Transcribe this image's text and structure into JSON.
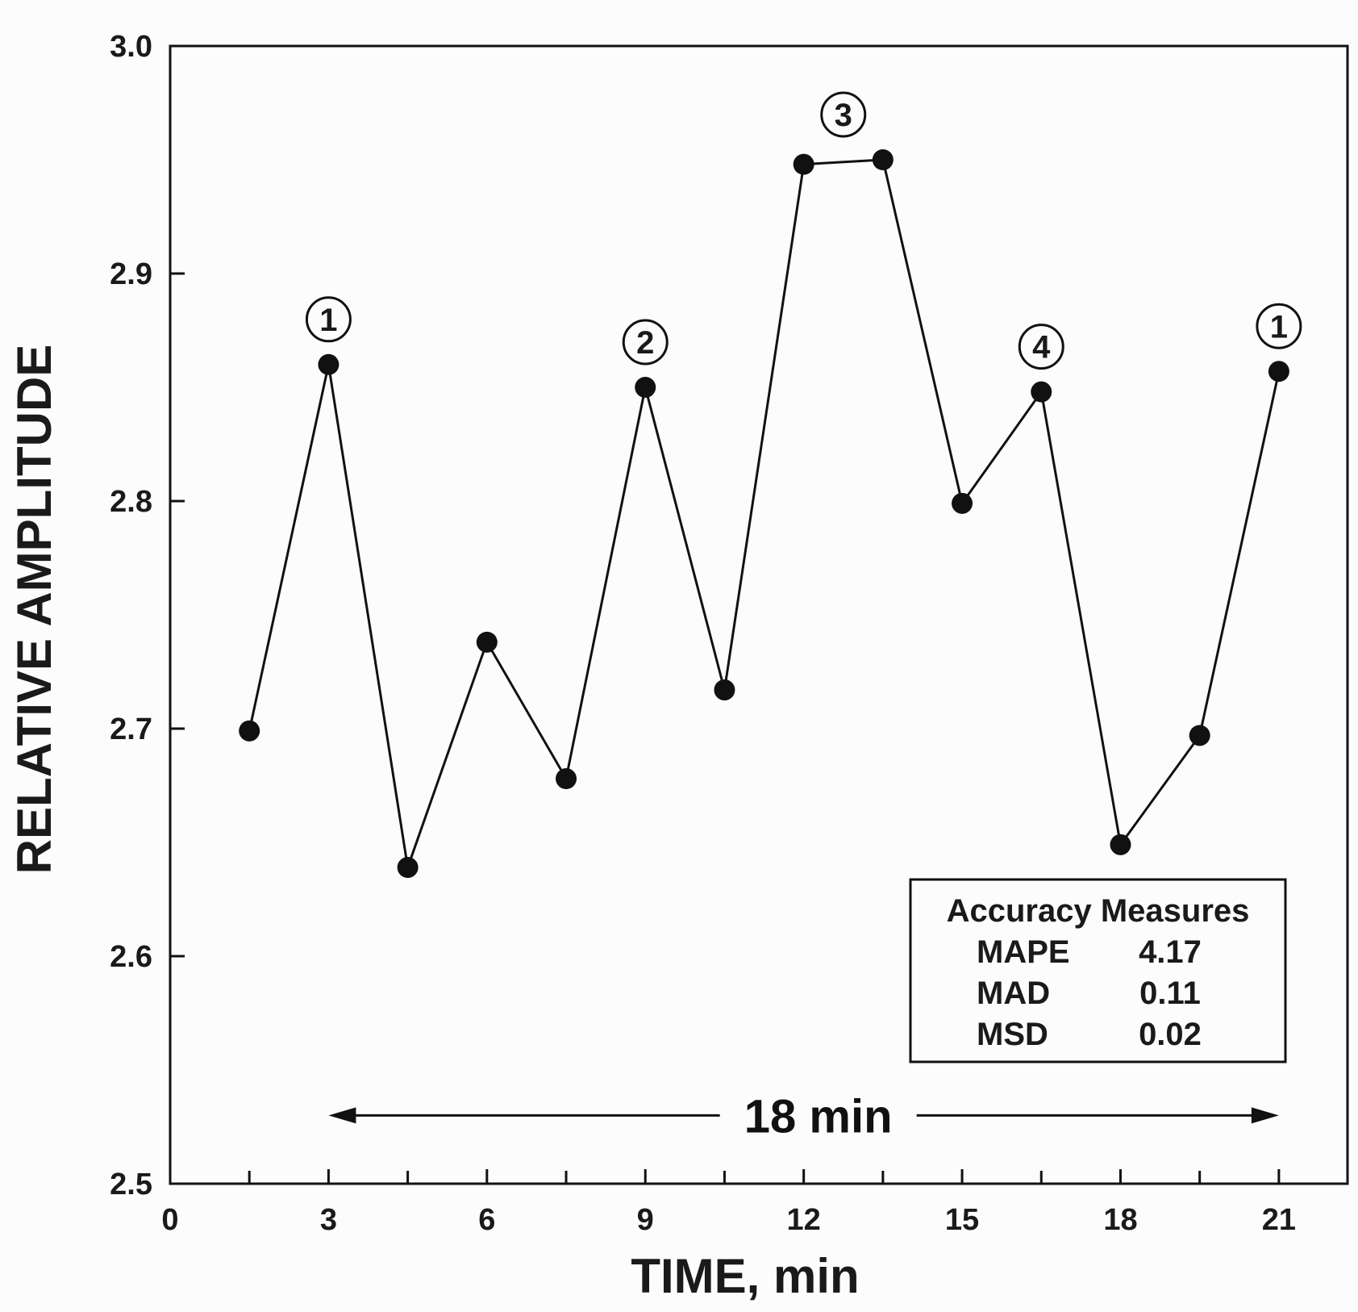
{
  "chart_data": {
    "type": "line",
    "title": "",
    "xlabel": "TIME, min",
    "ylabel": "RELATIVE AMPLITUDE",
    "xlim": [
      0,
      22.3
    ],
    "ylim": [
      2.5,
      3.0
    ],
    "x_ticks": [
      0,
      3,
      6,
      9,
      12,
      15,
      18,
      21
    ],
    "x_minor_ticks": [
      1.5,
      4.5,
      7.5,
      10.5,
      13.5,
      16.5,
      19.5
    ],
    "y_ticks": [
      2.5,
      2.6,
      2.7,
      2.8,
      2.9,
      3.0
    ],
    "x_tick_labels": [
      "0",
      "3",
      "6",
      "9",
      "12",
      "15",
      "18",
      "21"
    ],
    "y_tick_labels": [
      "2.5",
      "2.6",
      "2.7",
      "2.8",
      "2.9",
      "3.0"
    ],
    "x": [
      1.5,
      3,
      4.5,
      6,
      7.5,
      9,
      10.5,
      12,
      13.5,
      15,
      16.5,
      18,
      19.5,
      21
    ],
    "y": [
      2.699,
      2.86,
      2.639,
      2.738,
      2.678,
      2.85,
      2.717,
      2.948,
      2.95,
      2.799,
      2.848,
      2.649,
      2.697,
      2.857
    ],
    "annotations": [
      {
        "label": "1",
        "x": 3,
        "y": 2.86
      },
      {
        "label": "2",
        "x": 9,
        "y": 2.85
      },
      {
        "label": "3",
        "x": 12.75,
        "y": 2.95
      },
      {
        "label": "4",
        "x": 16.5,
        "y": 2.848
      },
      {
        "label": "1",
        "x": 21,
        "y": 2.857
      }
    ],
    "duration": {
      "label": "18 min",
      "x_start": 3,
      "x_end": 21,
      "y": 2.53
    },
    "legend": {
      "title": "Accuracy Measures",
      "position": "bottom-right",
      "rows": [
        {
          "name": "MAPE",
          "value": "4.17"
        },
        {
          "name": "MAD",
          "value": "0.11"
        },
        {
          "name": "MSD",
          "value": "0.02"
        }
      ]
    },
    "grid": false,
    "colors": {
      "line": "#111111",
      "marker": "#111111",
      "axis": "#111111",
      "background": "#fcfcfc"
    }
  }
}
